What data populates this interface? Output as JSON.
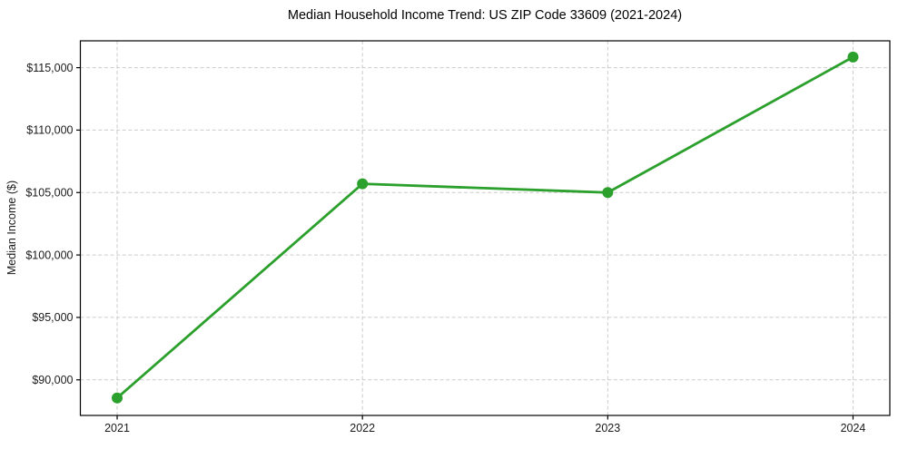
{
  "chart_data": {
    "type": "line",
    "title": "Median Household Income Trend: US ZIP Code 33609 (2021-2024)",
    "xlabel": "",
    "ylabel": "Median Income ($)",
    "series": [
      {
        "name": "Median Household Income",
        "x": [
          2021,
          2022,
          2023,
          2024
        ],
        "values": [
          88550,
          105700,
          105000,
          115850
        ],
        "color": "#2ca02c",
        "marker": "circle"
      }
    ],
    "xlim": [
      2020.85,
      2024.15
    ],
    "ylim": [
      87150,
      117150
    ],
    "xticks": {
      "values": [
        2021,
        2022,
        2023,
        2024
      ],
      "labels": [
        "2021",
        "2022",
        "2023",
        "2024"
      ]
    },
    "yticks": {
      "values": [
        90000,
        95000,
        100000,
        105000,
        110000,
        115000
      ],
      "labels": [
        "$90,000",
        "$95,000",
        "$100,000",
        "$105,000",
        "$110,000",
        "$115,000"
      ]
    },
    "grid": true,
    "grid_color": "#cccccc",
    "grid_style": "dashed",
    "frame_color": "#000000",
    "tick_color": "#000000",
    "background": "#ffffff",
    "legend": "none"
  }
}
